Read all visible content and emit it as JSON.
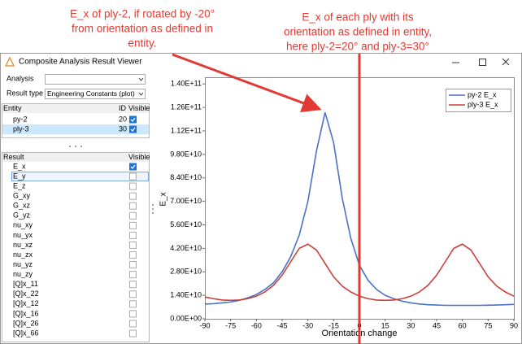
{
  "annotations": {
    "left": [
      "E_x of ply-2, if rotated by -20°",
      "from orientation as defined in",
      "entity."
    ],
    "right": [
      "E_x of each ply with its",
      "orientation as defined in entity,",
      "here ply-2=20° and ply-3=30°"
    ]
  },
  "window": {
    "title": "Composite Analysis Result Viewer"
  },
  "panel": {
    "analysis_label": "Analysis",
    "result_type_label": "Result type",
    "result_type_value": "Engineering Constants (plot)",
    "entity_table": {
      "headers": [
        "Entity",
        "ID",
        "Visible"
      ],
      "rows": [
        {
          "name": "py-2",
          "id": 20,
          "visible": true
        },
        {
          "name": "ply-3",
          "id": 30,
          "visible": true
        }
      ]
    },
    "result_table": {
      "headers": [
        "Result",
        "Visible"
      ],
      "rows": [
        {
          "name": "E_x",
          "visible": true
        },
        {
          "name": "E_y",
          "visible": false
        },
        {
          "name": "E_z",
          "visible": false
        },
        {
          "name": "G_xy",
          "visible": false
        },
        {
          "name": "G_xz",
          "visible": false
        },
        {
          "name": "G_yz",
          "visible": false
        },
        {
          "name": "nu_xy",
          "visible": false
        },
        {
          "name": "nu_yx",
          "visible": false
        },
        {
          "name": "nu_xz",
          "visible": false
        },
        {
          "name": "nu_zx",
          "visible": false
        },
        {
          "name": "nu_yz",
          "visible": false
        },
        {
          "name": "nu_zy",
          "visible": false
        },
        {
          "name": "[Q]x_11",
          "visible": false
        },
        {
          "name": "[Q]x_22",
          "visible": false
        },
        {
          "name": "[Q]x_12",
          "visible": false
        },
        {
          "name": "[Q]x_16",
          "visible": false
        },
        {
          "name": "[Q]x_26",
          "visible": false
        },
        {
          "name": "[Q]x_66",
          "visible": false
        }
      ]
    }
  },
  "chart_data": {
    "type": "line",
    "xlabel": "Orientation change",
    "ylabel": "E_x",
    "x": [
      -90,
      -85,
      -80,
      -75,
      -70,
      -65,
      -60,
      -55,
      -50,
      -45,
      -40,
      -35,
      -30,
      -25,
      -20,
      -15,
      -10,
      -5,
      0,
      5,
      10,
      15,
      20,
      25,
      30,
      35,
      40,
      45,
      50,
      55,
      60,
      65,
      70,
      75,
      80,
      85,
      90
    ],
    "series": [
      {
        "name": "py-2 E_x",
        "color": "#4a72c8",
        "values": [
          8800000000.0,
          9000000000.0,
          9500000000.0,
          10000000000.0,
          11000000000.0,
          12500000000.0,
          14500000000.0,
          17500000000.0,
          21500000000.0,
          28000000000.0,
          37000000000.0,
          50000000000.0,
          70000000000.0,
          100000000000.0,
          123000000000.0,
          105000000000.0,
          72000000000.0,
          48000000000.0,
          32000000000.0,
          23000000000.0,
          17500000000.0,
          14000000000.0,
          12000000000.0,
          10500000000.0,
          9500000000.0,
          8800000000.0,
          8400000000.0,
          8200000000.0,
          8000000000.0,
          8000000000.0,
          8000000000.0,
          8000000000.0,
          8000000000.0,
          8100000000.0,
          8200000000.0,
          8400000000.0,
          8600000000.0
        ]
      },
      {
        "name": "ply-3 E_x",
        "color": "#c8403a",
        "values": [
          13000000000.0,
          12000000000.0,
          11200000000.0,
          11000000000.0,
          11200000000.0,
          12000000000.0,
          13500000000.0,
          16000000000.0,
          20000000000.0,
          26000000000.0,
          34000000000.0,
          42000000000.0,
          44500000000.0,
          41000000000.0,
          33000000000.0,
          25000000000.0,
          19500000000.0,
          16000000000.0,
          13500000000.0,
          12000000000.0,
          11200000000.0,
          11000000000.0,
          11200000000.0,
          12000000000.0,
          13500000000.0,
          16000000000.0,
          20000000000.0,
          26000000000.0,
          34000000000.0,
          42000000000.0,
          44500000000.0,
          41000000000.0,
          33000000000.0,
          25000000000.0,
          19500000000.0,
          16000000000.0,
          13500000000.0
        ]
      }
    ],
    "xlim": [
      -90,
      90
    ],
    "xticks": [
      -90,
      -75,
      -60,
      -45,
      -30,
      -15,
      0,
      15,
      30,
      45,
      60,
      75,
      90
    ],
    "ylim": [
      0,
      144000000000.0
    ],
    "yticks": [
      {
        "value": 0,
        "label": "0.00E+00"
      },
      {
        "value": 14000000000,
        "label": "1.40E+10"
      },
      {
        "value": 28000000000,
        "label": "2.80E+10"
      },
      {
        "value": 42000000000,
        "label": "4.20E+10"
      },
      {
        "value": 56000000000,
        "label": "5.60E+10"
      },
      {
        "value": 70000000000,
        "label": "7.00E+10"
      },
      {
        "value": 84000000000,
        "label": "8.40E+10"
      },
      {
        "value": 98000000000,
        "label": "9.80E+10"
      },
      {
        "value": 112000000000,
        "label": "1.12E+11"
      },
      {
        "value": 126000000000,
        "label": "1.26E+11"
      },
      {
        "value": 140000000000,
        "label": "1.40E+11"
      }
    ],
    "grid": false,
    "legend": "upper right"
  }
}
